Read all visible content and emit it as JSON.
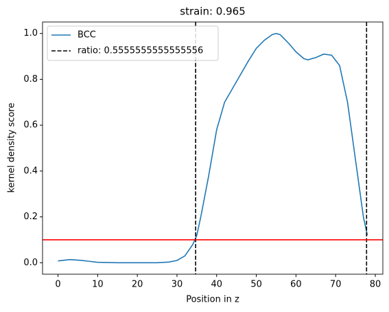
{
  "chart_data": {
    "type": "line",
    "title": "strain: 0.965",
    "xlabel": "Position in z",
    "ylabel": "kernel density score",
    "x": [
      0,
      3,
      6,
      10,
      15,
      20,
      25,
      28,
      30,
      32,
      34,
      35,
      36,
      38,
      40,
      42,
      44,
      46,
      48,
      50,
      52,
      54,
      55,
      56,
      58,
      60,
      62,
      63,
      65,
      67,
      69,
      71,
      73,
      75,
      77,
      78
    ],
    "series": [
      {
        "name": "BCC",
        "color": "#1f77b4",
        "values": [
          0.008,
          0.014,
          0.01,
          0.002,
          0,
          0,
          0,
          0.003,
          0.01,
          0.03,
          0.08,
          0.12,
          0.2,
          0.38,
          0.58,
          0.7,
          0.76,
          0.82,
          0.88,
          0.935,
          0.97,
          0.995,
          1.0,
          0.995,
          0.96,
          0.92,
          0.89,
          0.885,
          0.895,
          0.91,
          0.905,
          0.86,
          0.7,
          0.45,
          0.2,
          0.12
        ]
      }
    ],
    "vlines": {
      "name": "ratio: 0.5555555555555556",
      "color": "#000000",
      "x": [
        34.7,
        77.8
      ]
    },
    "hline": {
      "y": 0.1,
      "color": "#ff0000"
    },
    "xlim": [
      -3.9,
      81.9
    ],
    "xticks": [
      0,
      10,
      20,
      30,
      40,
      50,
      60,
      70,
      80
    ],
    "ylim": [
      -0.05,
      1.05
    ],
    "yticks": [
      {
        "value": 0,
        "label": "0.0"
      },
      0.2,
      0.4,
      0.6,
      0.8,
      {
        "value": 1,
        "label": "1.0"
      }
    ],
    "grid": false,
    "legend": "upper left"
  }
}
